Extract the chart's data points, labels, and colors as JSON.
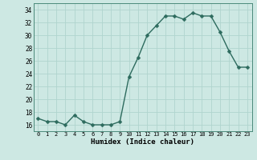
{
  "x": [
    0,
    1,
    2,
    3,
    4,
    5,
    6,
    7,
    8,
    9,
    10,
    11,
    12,
    13,
    14,
    15,
    16,
    17,
    18,
    19,
    20,
    21,
    22,
    23
  ],
  "y": [
    17,
    16.5,
    16.5,
    16,
    17.5,
    16.5,
    16,
    16,
    16,
    16.5,
    23.5,
    26.5,
    30,
    31.5,
    33,
    33,
    32.5,
    33.5,
    33,
    33,
    30.5,
    27.5,
    25,
    25
  ],
  "line_color": "#2d6b5e",
  "marker_color": "#2d6b5e",
  "bg_color": "#cde8e3",
  "grid_color": "#b0d4ce",
  "xlabel": "Humidex (Indice chaleur)",
  "ylim": [
    15,
    35
  ],
  "xlim": [
    -0.5,
    23.5
  ],
  "yticks": [
    16,
    18,
    20,
    22,
    24,
    26,
    28,
    30,
    32,
    34
  ],
  "xticks": [
    0,
    1,
    2,
    3,
    4,
    5,
    6,
    7,
    8,
    9,
    10,
    11,
    12,
    13,
    14,
    15,
    16,
    17,
    18,
    19,
    20,
    21,
    22,
    23
  ],
  "xtick_labels": [
    "0",
    "1",
    "2",
    "3",
    "4",
    "5",
    "6",
    "7",
    "8",
    "9",
    "10",
    "11",
    "12",
    "13",
    "14",
    "15",
    "16",
    "17",
    "18",
    "19",
    "20",
    "21",
    "22",
    "23"
  ],
  "linewidth": 1.0,
  "markersize": 2.5
}
